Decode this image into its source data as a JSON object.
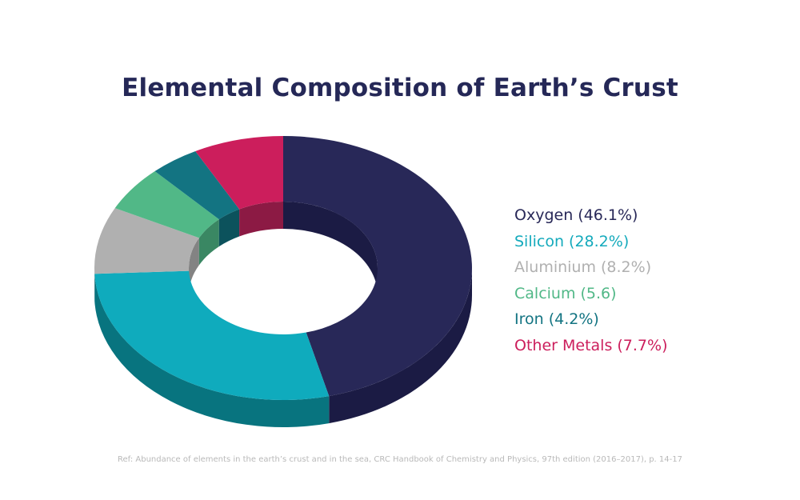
{
  "chart_data": {
    "type": "pie",
    "title": "Elemental Composition of Earth’s Crust",
    "legend_position": "right",
    "slices": [
      {
        "label": "Oxygen (46.1%)",
        "value": 46.1,
        "color": "#282858",
        "side_color": "#1b1b44",
        "text_color": "#282858"
      },
      {
        "label": "Silicon (28.2%)",
        "value": 28.2,
        "color": "#0fabbd",
        "side_color": "#08747f",
        "text_color": "#14aabc"
      },
      {
        "label": "Aluminium (8.2%)",
        "value": 8.2,
        "color": "#b0b0b0",
        "side_color": "#838383",
        "text_color": "#b0b0b0"
      },
      {
        "label": "Calcium (5.6)",
        "value": 5.6,
        "color": "#51b887",
        "side_color": "#3a8763",
        "text_color": "#51b887"
      },
      {
        "label": "Iron (4.2%)",
        "value": 4.2,
        "color": "#137482",
        "side_color": "#0c525c",
        "text_color": "#137482"
      },
      {
        "label": "Other Metals (7.7%)",
        "value": 7.7,
        "color": "#cc1e5c",
        "side_color": "#8c1a44",
        "text_color": "#cc1e5c"
      }
    ]
  },
  "footnote": "Ref: Abundance of elements in the earth’s crust and in the sea, CRC Handbook of Chemistry and Physics, 97th edition (2016–2017), p. 14-17"
}
